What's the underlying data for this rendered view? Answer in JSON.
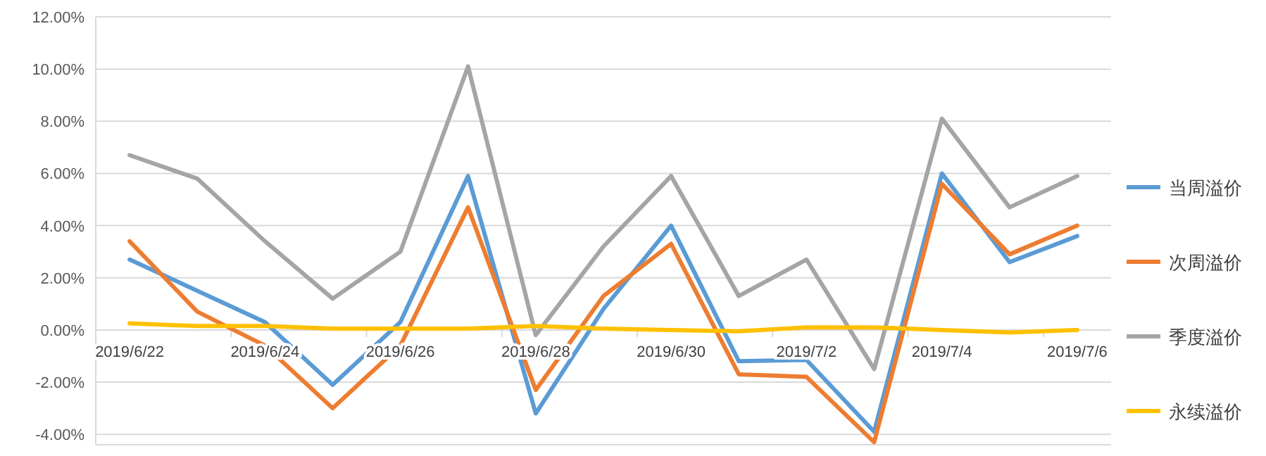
{
  "chart_data": {
    "type": "line",
    "categories": [
      "2019/6/22",
      null,
      "2019/6/24",
      null,
      "2019/6/26",
      null,
      "2019/6/28",
      null,
      "2019/6/30",
      null,
      "2019/7/2",
      null,
      "2019/7/4",
      null,
      "2019/7/6"
    ],
    "series": [
      {
        "name": "当周溢价",
        "color": "#5b9bd5",
        "values": [
          2.7,
          1.5,
          0.3,
          -2.1,
          0.3,
          5.9,
          -3.2,
          0.8,
          4.0,
          -1.2,
          -1.15,
          -3.9,
          6.0,
          2.6,
          3.6
        ]
      },
      {
        "name": "次周溢价",
        "color": "#ed7d31",
        "values": [
          3.4,
          0.7,
          -0.6,
          -3.0,
          -0.6,
          4.7,
          -2.3,
          1.3,
          3.3,
          -1.7,
          -1.8,
          -4.3,
          5.6,
          2.9,
          4.0
        ]
      },
      {
        "name": "季度溢价",
        "color": "#a5a5a5",
        "values": [
          6.7,
          5.8,
          3.4,
          1.2,
          3.0,
          10.1,
          -0.2,
          3.2,
          5.9,
          1.3,
          2.7,
          -1.5,
          8.1,
          4.7,
          5.9
        ]
      },
      {
        "name": "永续溢价",
        "color": "#ffc000",
        "values": [
          0.25,
          0.15,
          0.15,
          0.05,
          0.05,
          0.05,
          0.15,
          0.05,
          0.0,
          -0.05,
          0.1,
          0.1,
          0.0,
          -0.1,
          0.0
        ]
      }
    ],
    "ylim": [
      -4.4,
      12
    ],
    "yticks": [
      {
        "value": -4,
        "label": "-4.00%"
      },
      {
        "value": -2,
        "label": "-2.00%"
      },
      {
        "value": 0,
        "label": "0.00%"
      },
      {
        "value": 2,
        "label": "2.00%"
      },
      {
        "value": 4,
        "label": "4.00%"
      },
      {
        "value": 6,
        "label": "6.00%"
      },
      {
        "value": 8,
        "label": "8.00%"
      },
      {
        "value": 10,
        "label": "10.00%"
      },
      {
        "value": 12,
        "label": "12.00%"
      }
    ],
    "grid": "y",
    "legend": "right"
  }
}
